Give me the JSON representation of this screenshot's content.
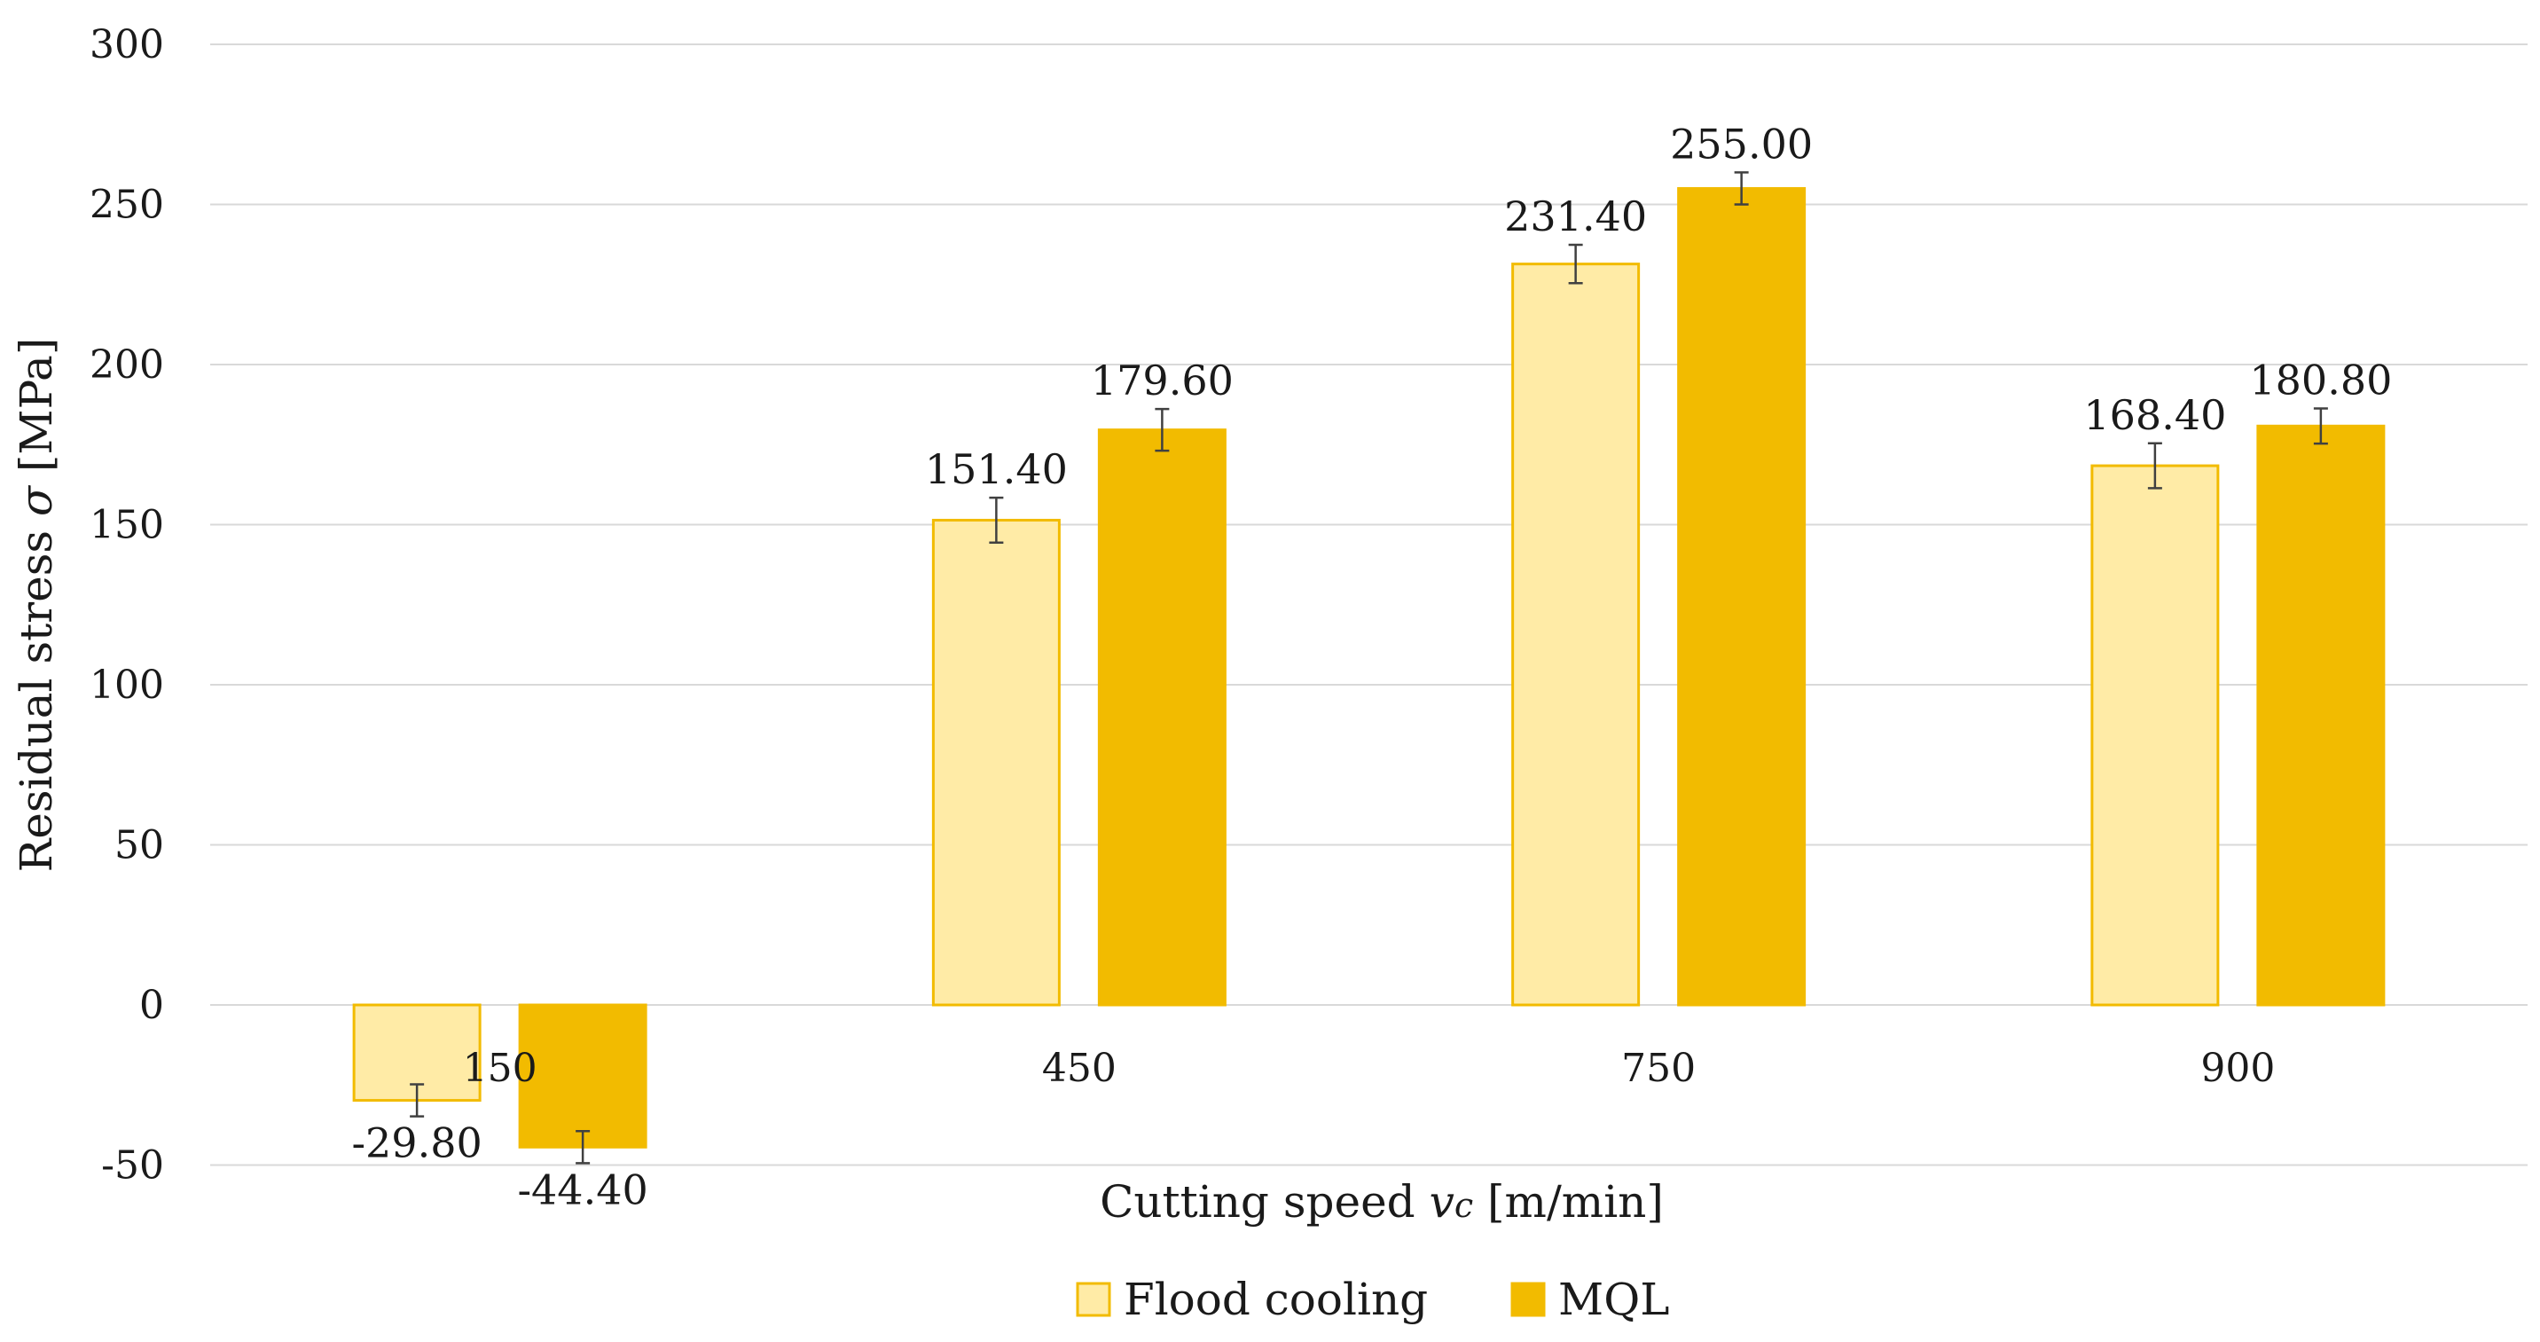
{
  "chart_data": {
    "type": "bar",
    "title": "",
    "categories": [
      "150",
      "450",
      "750",
      "900"
    ],
    "series": [
      {
        "name": "Flood cooling",
        "values": [
          -29.8,
          151.4,
          231.4,
          168.4
        ],
        "labels": [
          "-29.80",
          "151.40",
          "231.40",
          "168.40"
        ],
        "errors": [
          5,
          7,
          6,
          7
        ],
        "color": "#FFEBA6",
        "edge_color": "#F2BB00"
      },
      {
        "name": "MQL",
        "values": [
          -44.4,
          179.6,
          255.0,
          180.8
        ],
        "labels": [
          "-44.40",
          "179.60",
          "255.00",
          "180.80"
        ],
        "errors": [
          5,
          6.5,
          5,
          5.5
        ],
        "color": "#F2BB00",
        "edge_color": "#F2BB00"
      }
    ],
    "ylim": [
      -50,
      300
    ],
    "yticks": [
      -50,
      0,
      50,
      100,
      150,
      200,
      250,
      300
    ],
    "grid": true,
    "legend_position": "bottom",
    "ylabel": {
      "prefix": "Residual stress ",
      "symbol": "σ",
      "suffix": " [MPa]"
    },
    "xlabel": {
      "prefix": "Cutting speed ",
      "symbol": "v",
      "subscript": "c",
      "suffix": " [m/min]"
    }
  }
}
